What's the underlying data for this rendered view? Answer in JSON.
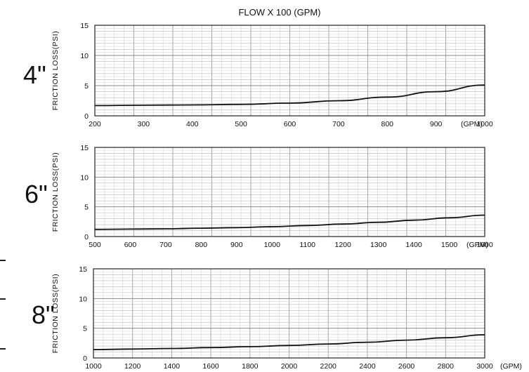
{
  "page_title": "FLOW X 100 (GPM)",
  "chart_data": [
    {
      "type": "line",
      "panel_label": "4\"",
      "ylabel": "FRICTION LOSS(PSI)",
      "x_unit": "(GPM)",
      "xlim": [
        200,
        1000
      ],
      "ylim": [
        0,
        15
      ],
      "x_ticks": [
        "200",
        "300",
        "400",
        "500",
        "600",
        "700",
        "800",
        "900",
        "1000"
      ],
      "y_ticks": [
        "0",
        "5",
        "10",
        "15"
      ],
      "grid": true,
      "series": [
        {
          "x": [
            200,
            300,
            400,
            500,
            600,
            700,
            800,
            900,
            1000
          ],
          "y": [
            1.7,
            1.75,
            1.8,
            1.9,
            2.1,
            2.5,
            3.1,
            4.0,
            5.1
          ]
        }
      ]
    },
    {
      "type": "line",
      "panel_label": "6\"",
      "ylabel": "FRICTION LOSS(PSI)",
      "x_unit": "(GPM)",
      "xlim": [
        500,
        1600
      ],
      "ylim": [
        0,
        15
      ],
      "x_ticks": [
        "500",
        "600",
        "700",
        "800",
        "900",
        "1000",
        "1100",
        "1200",
        "1300",
        "1400",
        "1500",
        "1600"
      ],
      "y_ticks": [
        "0",
        "5",
        "10",
        "15"
      ],
      "grid": true,
      "series": [
        {
          "x": [
            500,
            600,
            700,
            800,
            900,
            1000,
            1100,
            1200,
            1300,
            1400,
            1500,
            1600
          ],
          "y": [
            1.2,
            1.25,
            1.3,
            1.4,
            1.5,
            1.65,
            1.85,
            2.1,
            2.4,
            2.75,
            3.15,
            3.6
          ]
        }
      ]
    },
    {
      "type": "line",
      "panel_label": "8\"",
      "ylabel": "FRICTION LOSS(PSI)",
      "x_unit": "(GPM)",
      "xlim": [
        1000,
        3000
      ],
      "ylim": [
        0,
        15
      ],
      "x_ticks": [
        "1000",
        "1200",
        "1400",
        "1600",
        "1800",
        "2000",
        "2200",
        "2400",
        "2600",
        "2800",
        "3000"
      ],
      "y_ticks": [
        "0",
        "5",
        "10",
        "15"
      ],
      "grid": true,
      "series": [
        {
          "x": [
            1000,
            1200,
            1400,
            1600,
            1800,
            2000,
            2200,
            2400,
            2600,
            2800,
            3000
          ],
          "y": [
            1.4,
            1.5,
            1.6,
            1.75,
            1.9,
            2.1,
            2.35,
            2.65,
            3.0,
            3.4,
            3.9
          ]
        }
      ]
    }
  ]
}
